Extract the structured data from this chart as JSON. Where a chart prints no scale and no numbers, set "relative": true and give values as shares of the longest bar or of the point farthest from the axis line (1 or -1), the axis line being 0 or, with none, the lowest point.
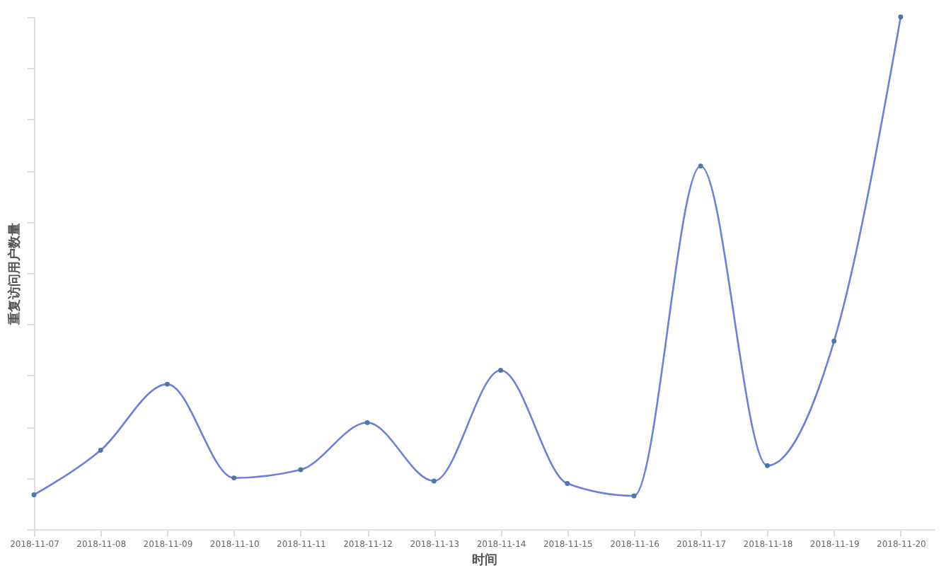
{
  "chart_data": {
    "type": "line",
    "relative": true,
    "xlabel": "时间",
    "ylabel": "重复访问用户数量",
    "categories": [
      "2018-11-07",
      "2018-11-08",
      "2018-11-09",
      "2018-11-10",
      "2018-11-11",
      "2018-11-12",
      "2018-11-13",
      "2018-11-14",
      "2018-11-15",
      "2018-11-16",
      "2018-11-17",
      "2018-11-18",
      "2018-11-19",
      "2018-11-20"
    ],
    "series": [
      {
        "color": "#6b7fdc",
        "values": [
          0.067,
          0.154,
          0.283,
          0.1,
          0.116,
          0.208,
          0.094,
          0.31,
          0.089,
          0.065,
          0.709,
          0.124,
          0.367,
          1.0
        ]
      }
    ],
    "marker": "circle",
    "grid": false
  }
}
